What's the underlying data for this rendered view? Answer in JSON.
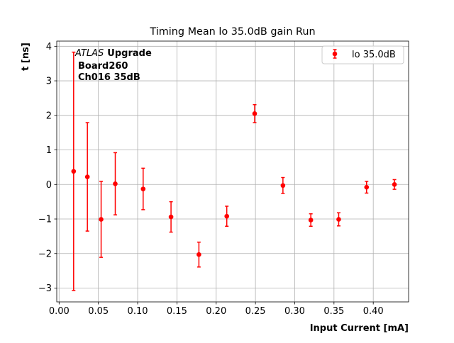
{
  "chart_data": {
    "type": "scatter",
    "title": "Timing Mean lo 35.0dB gain Run",
    "xlabel": "Input Current [mA]",
    "ylabel": "t [ns]",
    "xlim": [
      -0.003,
      0.445
    ],
    "ylim": [
      -3.4,
      4.15
    ],
    "xticks": [
      "0.00",
      "0.05",
      "0.10",
      "0.15",
      "0.20",
      "0.25",
      "0.30",
      "0.35",
      "0.40"
    ],
    "xtick_values": [
      0.0,
      0.05,
      0.1,
      0.15,
      0.2,
      0.25,
      0.3,
      0.35,
      0.4
    ],
    "yticks": [
      "−3",
      "−2",
      "−1",
      "0",
      "1",
      "2",
      "3",
      "4"
    ],
    "ytick_values": [
      -3,
      -2,
      -1,
      0,
      1,
      2,
      3,
      4
    ],
    "grid": true,
    "legend_position": "top-right",
    "annotation": {
      "italic": "ATLAS",
      "bold": "Upgrade",
      "line2": "Board260",
      "line3": "Ch016 35dB"
    },
    "color": "#ff0000",
    "series": [
      {
        "name": "lo 35.0dB",
        "x": [
          0.0185,
          0.036,
          0.0535,
          0.0715,
          0.107,
          0.1425,
          0.178,
          0.2135,
          0.249,
          0.285,
          0.3205,
          0.356,
          0.3915,
          0.427
        ],
        "y": [
          0.38,
          0.22,
          -1.01,
          0.02,
          -0.13,
          -0.94,
          -2.03,
          -0.92,
          2.05,
          -0.03,
          -1.03,
          -1.01,
          -0.08,
          0.0
        ],
        "yerr": [
          3.45,
          1.57,
          1.1,
          0.9,
          0.6,
          0.44,
          0.36,
          0.29,
          0.26,
          0.23,
          0.18,
          0.19,
          0.17,
          0.14
        ]
      }
    ]
  }
}
